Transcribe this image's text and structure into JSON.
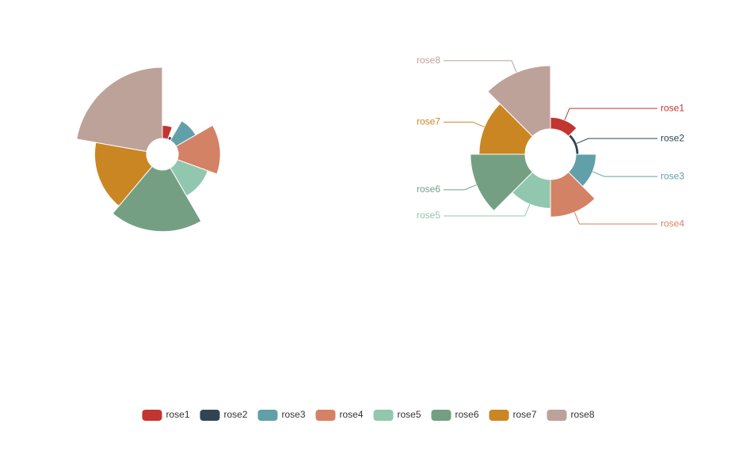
{
  "chart_data": [
    {
      "type": "pie",
      "rose_type": "radius",
      "label_display": "hidden",
      "title": "",
      "categories": [
        "rose1",
        "rose2",
        "rose3",
        "rose4",
        "rose5",
        "rose6",
        "rose7",
        "rose8"
      ],
      "values": [
        10,
        5,
        15,
        25,
        20,
        35,
        30,
        40
      ],
      "colors": [
        "#c23531",
        "#2f4554",
        "#61a0a8",
        "#d48265",
        "#91c7ae",
        "#749f83",
        "#ca8622",
        "#bda29a"
      ]
    },
    {
      "type": "pie",
      "rose_type": "area",
      "label_display": "outside",
      "title": "",
      "categories": [
        "rose1",
        "rose2",
        "rose3",
        "rose4",
        "rose5",
        "rose6",
        "rose7",
        "rose8"
      ],
      "values": [
        10,
        5,
        15,
        25,
        20,
        35,
        30,
        40
      ],
      "colors": [
        "#c23531",
        "#2f4554",
        "#61a0a8",
        "#d48265",
        "#91c7ae",
        "#749f83",
        "#ca8622",
        "#bda29a"
      ]
    }
  ],
  "legend": {
    "placement": "bottom-center",
    "items": [
      {
        "label": "rose1",
        "color": "#c23531"
      },
      {
        "label": "rose2",
        "color": "#2f4554"
      },
      {
        "label": "rose3",
        "color": "#61a0a8"
      },
      {
        "label": "rose4",
        "color": "#d48265"
      },
      {
        "label": "rose5",
        "color": "#91c7ae"
      },
      {
        "label": "rose6",
        "color": "#749f83"
      },
      {
        "label": "rose7",
        "color": "#ca8622"
      },
      {
        "label": "rose8",
        "color": "#bda29a"
      }
    ]
  }
}
